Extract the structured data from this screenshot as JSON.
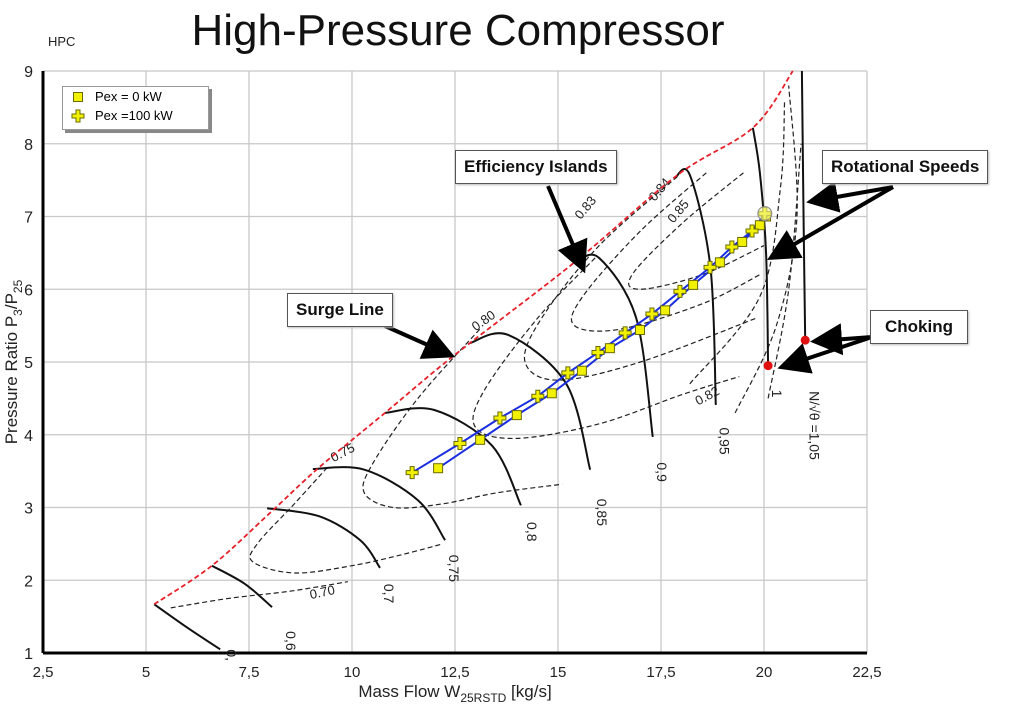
{
  "header": {
    "title": "High-Pressure Compressor",
    "tag": "HPC"
  },
  "annotations": {
    "efficiency_islands": "Efficiency Islands",
    "surge_line": "Surge Line",
    "rotational_speeds": "Rotational Speeds",
    "choking": "Choking"
  },
  "colors": {
    "surge": "#e8202a",
    "operating_line": "#1a2ee0",
    "marker_fill": "#f2f200",
    "marker_edge": "#6b6b00",
    "choke_point": "#e01010"
  },
  "chart_data": {
    "type": "scatter",
    "title": "High-Pressure Compressor",
    "xlabel": "Mass Flow W",
    "xlabel_sub": "25RSTD",
    "xlabel_unit": " [kg/s]",
    "ylabel": "Pressure Ratio P",
    "ylabel_sub1": "3",
    "ylabel_mid": "/P",
    "ylabel_sub2": "25",
    "xlim": [
      2.5,
      22.5
    ],
    "ylim": [
      1,
      9
    ],
    "xticks": [
      "2,5",
      "5",
      "7,5",
      "10",
      "12,5",
      "15",
      "17,5",
      "20",
      "22,5"
    ],
    "xtick_values": [
      2.5,
      5,
      7.5,
      10,
      12.5,
      15,
      17.5,
      20,
      22.5
    ],
    "yticks": [
      "1",
      "2",
      "3",
      "4",
      "5",
      "6",
      "7",
      "8",
      "9"
    ],
    "ytick_values": [
      1,
      2,
      3,
      4,
      5,
      6,
      7,
      8,
      9
    ],
    "grid": true,
    "legend_position": "top-left",
    "series": [
      {
        "name": "Pex = 0 kW",
        "marker": "square",
        "x": [
          12.09,
          13.11,
          14.0,
          14.85,
          15.58,
          16.26,
          16.99,
          17.6,
          18.28,
          18.93,
          19.47,
          19.9,
          20.05
        ],
        "y": [
          3.54,
          3.93,
          4.27,
          4.57,
          4.88,
          5.19,
          5.44,
          5.71,
          6.06,
          6.37,
          6.65,
          6.88,
          7.0
        ]
      },
      {
        "name": "Pex =100 kW",
        "marker": "cross",
        "x": [
          11.46,
          12.62,
          13.59,
          14.51,
          15.24,
          15.97,
          16.63,
          17.28,
          17.96,
          18.69,
          19.22,
          19.71,
          20.02
        ],
        "y": [
          3.48,
          3.88,
          4.23,
          4.53,
          4.85,
          5.13,
          5.4,
          5.66,
          5.97,
          6.3,
          6.58,
          6.8,
          7.04
        ]
      }
    ],
    "surge_line": {
      "x": [
        5.2,
        6.6,
        8.0,
        9.2,
        10.8,
        12.5,
        15.4,
        17.9,
        19.73,
        20.7
      ],
      "y": [
        1.67,
        2.2,
        2.92,
        3.55,
        4.3,
        5.1,
        6.37,
        7.57,
        8.22,
        9.0
      ]
    },
    "speed_lines": [
      {
        "label": "0,",
        "x": [
          5.2,
          6.0,
          6.8
        ],
        "y": [
          1.67,
          1.35,
          1.05
        ],
        "label_at": [
          6.95,
          1.05
        ]
      },
      {
        "label": "0,6",
        "x": [
          6.6,
          7.4,
          8.06
        ],
        "y": [
          2.2,
          1.95,
          1.63
        ],
        "label_at": [
          8.4,
          1.3
        ]
      },
      {
        "label": "0,7",
        "x": [
          7.94,
          9.2,
          10.2,
          10.68
        ],
        "y": [
          2.99,
          2.88,
          2.55,
          2.17
        ],
        "label_at": [
          10.78,
          1.95
        ]
      },
      {
        "label": "0,75",
        "x": [
          9.05,
          10.3,
          11.6,
          12.26
        ],
        "y": [
          3.53,
          3.52,
          3.1,
          2.55
        ],
        "label_at": [
          12.35,
          2.35
        ]
      },
      {
        "label": "0,8",
        "x": [
          10.8,
          12.0,
          13.4,
          14.1
        ],
        "y": [
          4.3,
          4.34,
          3.85,
          3.03
        ],
        "label_at": [
          14.25,
          2.8
        ]
      },
      {
        "label": "0,85",
        "x": [
          12.86,
          13.8,
          15.2,
          15.78
        ],
        "y": [
          5.26,
          5.37,
          4.7,
          3.52
        ],
        "label_at": [
          15.95,
          3.12
        ]
      },
      {
        "label": "0,9",
        "x": [
          15.44,
          16.0,
          16.9,
          17.3
        ],
        "y": [
          6.37,
          6.43,
          5.6,
          3.97
        ],
        "label_at": [
          17.4,
          3.62
        ]
      },
      {
        "label": "0,95",
        "x": [
          17.84,
          18.2,
          18.7,
          18.83
        ],
        "y": [
          7.53,
          7.57,
          6.3,
          4.41
        ],
        "label_at": [
          18.92,
          4.1
        ]
      },
      {
        "label": "1",
        "x": [
          19.73,
          19.9,
          20.05,
          20.1
        ],
        "y": [
          8.22,
          7.6,
          6.5,
          4.92
        ],
        "label_at": [
          20.2,
          4.62
        ]
      },
      {
        "label": "N/√θ =1,05",
        "x": [
          20.92,
          20.96,
          21.0
        ],
        "y": [
          9.0,
          7.0,
          5.3
        ],
        "label_at": [
          21.1,
          4.6
        ]
      }
    ],
    "efficiency_contours": [
      {
        "label": "0.70",
        "x": [
          5.6,
          7.0,
          8.5,
          9.9
        ],
        "y": [
          1.62,
          1.75,
          1.85,
          1.98
        ],
        "label_at": [
          9.0,
          1.74
        ],
        "label_angle": -12
      },
      {
        "label": "0.75",
        "x": [
          9.4,
          8.6,
          7.7,
          7.6,
          8.6,
          10.0,
          11.2,
          12.2
        ],
        "y": [
          3.55,
          3.05,
          2.5,
          2.25,
          2.1,
          2.2,
          2.35,
          2.5
        ],
        "label_at": [
          9.55,
          3.62
        ],
        "label_angle": -28
      },
      {
        "label": "0.80",
        "x": [
          13.1,
          11.6,
          10.5,
          10.3,
          11.0,
          12.2,
          13.5,
          15.1
        ],
        "y": [
          5.45,
          4.5,
          3.6,
          3.2,
          3.0,
          3.05,
          3.2,
          3.32
        ],
        "label_at": [
          13.0,
          5.42
        ],
        "label_angle": -35
      },
      {
        "label": "0.82",
        "x": [
          15.9,
          14.5,
          13.2,
          13.0,
          14.0,
          16.0,
          18.0,
          19.4
        ],
        "y": [
          6.43,
          5.6,
          4.6,
          4.1,
          3.95,
          4.15,
          4.55,
          4.8
        ],
        "label_at": [
          18.4,
          4.4
        ],
        "label_angle": -28
      },
      {
        "label": "0.83",
        "x": [
          17.9,
          16.0,
          14.6,
          14.2,
          15.0,
          17.0,
          19.8
        ],
        "y": [
          7.55,
          6.6,
          5.6,
          5.0,
          4.75,
          5.0,
          5.6
        ],
        "label_at": [
          15.55,
          6.95
        ],
        "label_angle": -50
      },
      {
        "label": "0.84",
        "x": [
          18.6,
          17.0,
          15.6,
          15.4,
          16.5,
          18.5,
          19.9
        ],
        "y": [
          7.6,
          6.8,
          5.9,
          5.5,
          5.45,
          5.8,
          6.2
        ],
        "label_at": [
          17.35,
          7.2
        ],
        "label_angle": -50
      },
      {
        "label": "0.85",
        "x": [
          19.5,
          18.0,
          16.8,
          17.0,
          18.5,
          20.0
        ],
        "y": [
          7.6,
          6.9,
          6.2,
          6.0,
          6.2,
          6.6
        ],
        "label_at": [
          17.8,
          6.9
        ],
        "label_angle": -50
      },
      {
        "label": "",
        "x": [
          19.3,
          20.3,
          20.8,
          20.6
        ],
        "y": [
          4.3,
          5.5,
          7.0,
          8.8
        ],
        "label_at": null
      },
      {
        "label": "",
        "x": [
          18.2,
          19.9,
          20.4,
          20.5
        ],
        "y": [
          4.7,
          5.9,
          7.4,
          8.6
        ],
        "label_at": null
      },
      {
        "label": "",
        "x": [
          20.1,
          20.6,
          20.9
        ],
        "y": [
          4.5,
          6.0,
          8.0
        ],
        "label_at": null
      }
    ],
    "choke_points": {
      "x": [
        20.1,
        21.0
      ],
      "y": [
        4.95,
        5.3
      ]
    }
  }
}
